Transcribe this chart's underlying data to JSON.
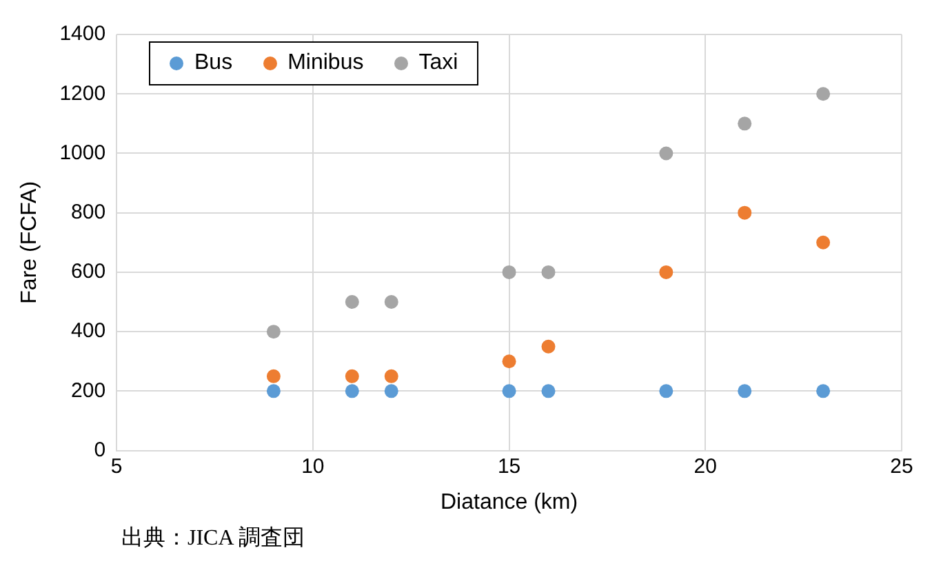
{
  "chart_data": {
    "type": "scatter",
    "xlabel": "Diatance (km)",
    "ylabel": "Fare (FCFA)",
    "x": [
      9,
      11,
      12,
      15,
      16,
      19,
      21,
      23
    ],
    "series": [
      {
        "name": "Bus",
        "color": "#5b9bd5",
        "values": [
          200,
          200,
          200,
          200,
          200,
          200,
          200,
          200
        ]
      },
      {
        "name": "Minibus",
        "color": "#ed7d31",
        "values": [
          250,
          250,
          250,
          300,
          350,
          600,
          800,
          700
        ]
      },
      {
        "name": "Taxi",
        "color": "#a5a5a5",
        "values": [
          400,
          500,
          500,
          600,
          600,
          1000,
          1100,
          1200
        ]
      }
    ],
    "xlim": [
      5,
      25
    ],
    "xticks": [
      5,
      10,
      15,
      20,
      25
    ],
    "ylim": [
      0,
      1400
    ],
    "yticks": [
      0,
      200,
      400,
      600,
      800,
      1000,
      1200,
      1400
    ],
    "grid": true,
    "legend": "top left",
    "marker": "circle",
    "annotations": [
      "出典：JICA 調査団"
    ]
  }
}
